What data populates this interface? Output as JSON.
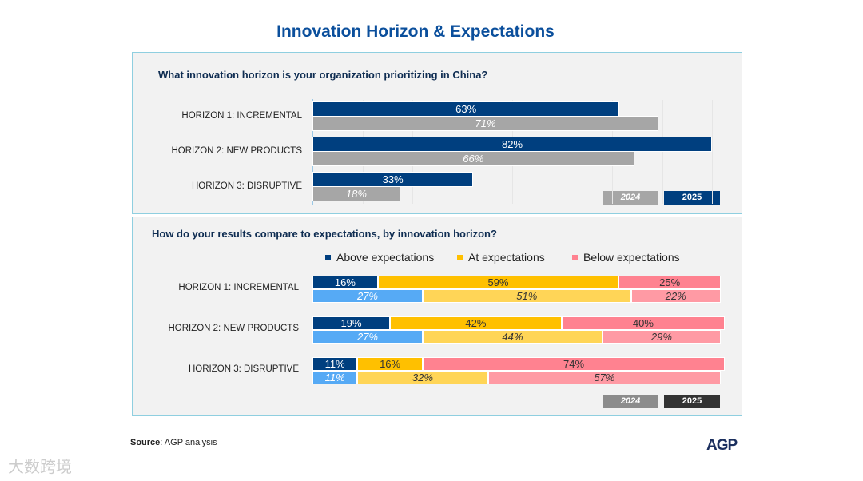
{
  "title": "Innovation Horizon & Expectations",
  "colors": {
    "y2025": "#003f7f",
    "y2024": "#a6a6a6",
    "above2025": "#003f7f",
    "above2024": "#56aaf5",
    "at2025": "#ffc000",
    "at2024": "#ffd557",
    "below2025": "#ff8290",
    "below2024": "#ff9aa4"
  },
  "chart_data": [
    {
      "type": "bar",
      "orientation": "horizontal",
      "title": "What innovation horizon is your organization prioritizing in China?",
      "categories": [
        "HORIZON 1: INCREMENTAL",
        "HORIZON 2: NEW PRODUCTS",
        "HORIZON 3: DISRUPTIVE"
      ],
      "series": [
        {
          "name": "2025",
          "values": [
            63,
            82,
            33
          ],
          "labels": [
            "63%",
            "82%",
            "33%"
          ]
        },
        {
          "name": "2024",
          "values": [
            71,
            66,
            18
          ],
          "labels": [
            "71%",
            "66%",
            "18%"
          ]
        }
      ],
      "legend": [
        "2024",
        "2025"
      ],
      "legend_position": "bottom-right"
    },
    {
      "type": "bar",
      "orientation": "horizontal",
      "stacked": true,
      "title": "How do your results compare to expectations, by innovation horizon?",
      "categories": [
        "HORIZON 1: INCREMENTAL",
        "HORIZON 2: NEW PRODUCTS",
        "HORIZON 3: DISRUPTIVE"
      ],
      "legend": [
        "Above expectations",
        "At expectations",
        "Below expectations"
      ],
      "year_legend": [
        "2024",
        "2025"
      ],
      "series": {
        "2025": {
          "above": [
            16,
            19,
            11
          ],
          "at": [
            59,
            42,
            16
          ],
          "below": [
            25,
            40,
            74
          ]
        },
        "2024": {
          "above": [
            27,
            27,
            11
          ],
          "at": [
            51,
            44,
            32
          ],
          "below": [
            22,
            29,
            57
          ]
        }
      }
    }
  ],
  "footer": {
    "source_label": "Source",
    "source_text": ": AGP analysis",
    "logo": "AGP",
    "watermark": "大数跨境"
  }
}
